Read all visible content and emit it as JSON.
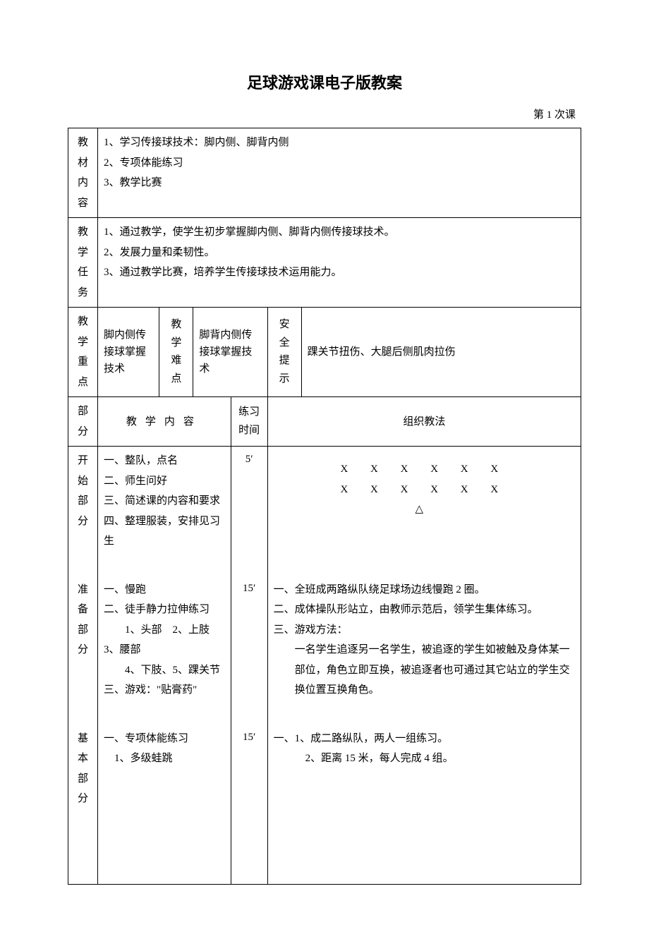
{
  "title": "足球游戏课电子版教案",
  "subtitle": "第 1 次课",
  "row1": {
    "label": "教材内容",
    "content": "1、学习传接球技术：脚内侧、脚背内侧\n2、专项体能练习\n3、教学比赛"
  },
  "row2": {
    "label": "教学任务",
    "content": "1、通过教学，使学生初步掌握脚内侧、脚背内侧传接球技术。\n2、发展力量和柔韧性。\n3、通过教学比赛，培养学生传接球技术运用能力。"
  },
  "row3": {
    "label1": "教学重点",
    "val1": "脚内侧传接球掌握技术",
    "label2": "教学难点",
    "val2": "脚背内侧传接球掌握技术",
    "label3": "安全提示",
    "val3": "踝关节扭伤、大腿后侧肌肉拉伤"
  },
  "header": {
    "c1": "部分",
    "c2": "教学内容",
    "c3": "练习时间",
    "c4": "组织教法"
  },
  "sec1": {
    "label": "开始部分",
    "content": [
      "一、整队，点名",
      "二、师生问好",
      "三、简述课的内容和要求",
      "四、整理服装，安排见习生"
    ],
    "time": "5′",
    "formation": [
      "X  X  X  X  X  X",
      "X  X  X  X  X  X",
      "△"
    ]
  },
  "sec2": {
    "label": "准备部分",
    "content": [
      "一、慢跑",
      "二、徒手静力拉伸练习",
      "　　1、头部　2、上肢　3、腰部",
      "　　4、下肢、5、踝关节",
      "三、游戏：\"贴膏药\""
    ],
    "time": "15′",
    "method": [
      "一、全班成两路纵队绕足球场边线慢跑 2 圈。",
      "二、成体操队形站立，由教师示范后，领学生集体练习。",
      "三、游戏方法：",
      "一名学生追逐另一名学生，被追逐的学生如被触及身体某一部位，角色立即互换，被追逐者也可通过其它站立的学生交换位置互换角色。"
    ]
  },
  "sec3": {
    "label": "基本部分",
    "content": [
      "一、专项体能练习",
      "　1、多级蛙跳"
    ],
    "time": "15′",
    "method": [
      "一、1、成二路纵队，两人一组练习。",
      "　　　2、距离 15 米，每人完成 4 组。"
    ]
  }
}
